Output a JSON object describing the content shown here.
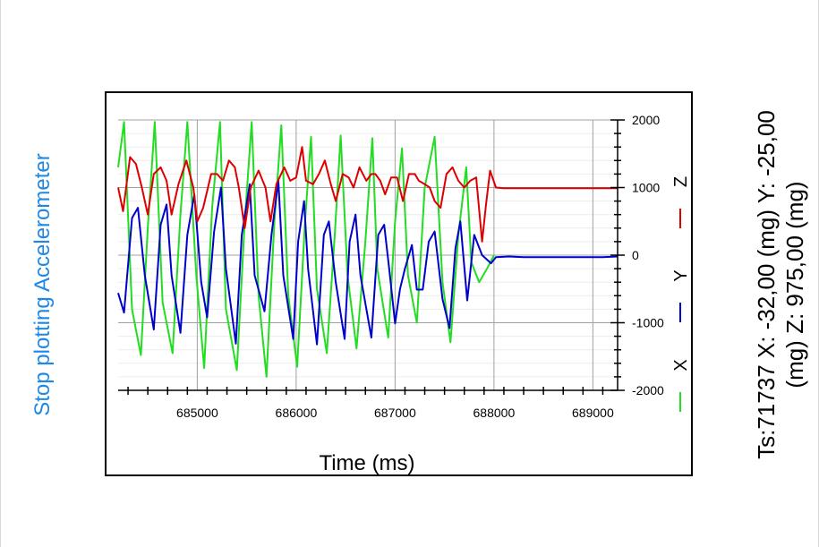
{
  "controls": {
    "stop_label": "Stop plotting Accelerometer"
  },
  "readout": {
    "line1": "Ts:71737 X: -32,00 (mg) Y: -25,00",
    "line2": "(mg) Z:  975,00 (mg)"
  },
  "colors": {
    "x": "#22dd22",
    "y": "#0000cc",
    "z": "#dd0000",
    "accent": "#1e88e5"
  },
  "chart_data": {
    "type": "line",
    "xlabel": "Time (ms)",
    "ylabel": "",
    "xlim": [
      684200,
      689250
    ],
    "ylim": [
      -2000,
      2000
    ],
    "x_ticks": [
      685000,
      686000,
      687000,
      688000,
      689000
    ],
    "y_ticks": [
      2000,
      1000,
      0,
      -1000,
      -2000
    ],
    "x_tick_labels": [
      "685000",
      "686000",
      "687000",
      "688000",
      "689000"
    ],
    "y_tick_labels": [
      "2000",
      "1000",
      "0",
      "-1000",
      "-2000"
    ],
    "grid": true,
    "legend_position": "right",
    "series": [
      {
        "name": "X",
        "color": "#22dd22",
        "points": [
          [
            684200,
            1300
          ],
          [
            684260,
            1970
          ],
          [
            684340,
            -800
          ],
          [
            684430,
            -1480
          ],
          [
            684500,
            400
          ],
          [
            684570,
            1970
          ],
          [
            684650,
            -700
          ],
          [
            684750,
            -1450
          ],
          [
            684830,
            600
          ],
          [
            684900,
            1970
          ],
          [
            684990,
            -300
          ],
          [
            685070,
            -1670
          ],
          [
            685150,
            700
          ],
          [
            685230,
            1970
          ],
          [
            685290,
            -800
          ],
          [
            685400,
            -1700
          ],
          [
            685480,
            500
          ],
          [
            685550,
            1970
          ],
          [
            685620,
            -600
          ],
          [
            685700,
            -1800
          ],
          [
            685780,
            500
          ],
          [
            685850,
            1920
          ],
          [
            685920,
            -600
          ],
          [
            686010,
            -1650
          ],
          [
            686090,
            500
          ],
          [
            686150,
            1750
          ],
          [
            686210,
            -500
          ],
          [
            686310,
            -1450
          ],
          [
            686390,
            300
          ],
          [
            686450,
            1770
          ],
          [
            686520,
            -300
          ],
          [
            686610,
            -1380
          ],
          [
            686700,
            200
          ],
          [
            686770,
            1730
          ],
          [
            686820,
            -200
          ],
          [
            686930,
            -1220
          ],
          [
            687000,
            500
          ],
          [
            687070,
            1580
          ],
          [
            687130,
            -300
          ],
          [
            687220,
            -1000
          ],
          [
            687300,
            1000
          ],
          [
            687400,
            1750
          ],
          [
            687480,
            -400
          ],
          [
            687560,
            -1290
          ],
          [
            687640,
            300
          ],
          [
            687720,
            1300
          ],
          [
            687770,
            -100
          ],
          [
            687850,
            -400
          ],
          [
            687930,
            -200
          ],
          [
            688000,
            0
          ]
        ]
      },
      {
        "name": "Y",
        "color": "#0000cc",
        "points": [
          [
            684200,
            -560
          ],
          [
            684260,
            -850
          ],
          [
            684340,
            550
          ],
          [
            684400,
            700
          ],
          [
            684470,
            -300
          ],
          [
            684560,
            -1100
          ],
          [
            684630,
            450
          ],
          [
            684690,
            750
          ],
          [
            684740,
            -300
          ],
          [
            684830,
            -1150
          ],
          [
            684900,
            300
          ],
          [
            684970,
            900
          ],
          [
            685040,
            -400
          ],
          [
            685100,
            -920
          ],
          [
            685170,
            350
          ],
          [
            685240,
            1000
          ],
          [
            685290,
            -200
          ],
          [
            685390,
            -1310
          ],
          [
            685450,
            300
          ],
          [
            685530,
            1050
          ],
          [
            685580,
            -300
          ],
          [
            685680,
            -830
          ],
          [
            685750,
            300
          ],
          [
            685820,
            1100
          ],
          [
            685870,
            -300
          ],
          [
            685970,
            -1240
          ],
          [
            686020,
            200
          ],
          [
            686080,
            800
          ],
          [
            686120,
            -200
          ],
          [
            686210,
            -1320
          ],
          [
            686280,
            300
          ],
          [
            686330,
            500
          ],
          [
            686400,
            -400
          ],
          [
            686490,
            -1240
          ],
          [
            686540,
            200
          ],
          [
            686600,
            600
          ],
          [
            686650,
            -300
          ],
          [
            686760,
            -1220
          ],
          [
            686830,
            300
          ],
          [
            686890,
            450
          ],
          [
            686940,
            -200
          ],
          [
            687000,
            -1010
          ],
          [
            687050,
            -500
          ],
          [
            687100,
            -200
          ],
          [
            687170,
            150
          ],
          [
            687220,
            -510
          ],
          [
            687280,
            -510
          ],
          [
            687340,
            200
          ],
          [
            687400,
            350
          ],
          [
            687480,
            -650
          ],
          [
            687550,
            -1080
          ],
          [
            687610,
            100
          ],
          [
            687660,
            500
          ],
          [
            687730,
            -670
          ],
          [
            687800,
            300
          ],
          [
            687880,
            0
          ],
          [
            687970,
            -120
          ],
          [
            688020,
            -30
          ],
          [
            688150,
            -20
          ],
          [
            688300,
            -30
          ],
          [
            688500,
            -30
          ],
          [
            688700,
            -30
          ],
          [
            688900,
            -30
          ],
          [
            689100,
            -30
          ],
          [
            689250,
            -20
          ]
        ]
      },
      {
        "name": "Z",
        "color": "#dd0000",
        "points": [
          [
            684200,
            1000
          ],
          [
            684250,
            650
          ],
          [
            684320,
            1450
          ],
          [
            684380,
            1350
          ],
          [
            684440,
            1000
          ],
          [
            684500,
            600
          ],
          [
            684560,
            1200
          ],
          [
            684630,
            1300
          ],
          [
            684690,
            1100
          ],
          [
            684740,
            600
          ],
          [
            684810,
            1050
          ],
          [
            684890,
            1400
          ],
          [
            684960,
            1000
          ],
          [
            685000,
            500
          ],
          [
            685060,
            700
          ],
          [
            685140,
            1200
          ],
          [
            685200,
            1200
          ],
          [
            685260,
            1100
          ],
          [
            685320,
            1400
          ],
          [
            685380,
            1300
          ],
          [
            685420,
            1000
          ],
          [
            685480,
            400
          ],
          [
            685540,
            1000
          ],
          [
            685620,
            1250
          ],
          [
            685690,
            1000
          ],
          [
            685740,
            500
          ],
          [
            685800,
            1050
          ],
          [
            685880,
            1300
          ],
          [
            685940,
            1100
          ],
          [
            686000,
            1150
          ],
          [
            686060,
            1600
          ],
          [
            686100,
            1100
          ],
          [
            686170,
            1050
          ],
          [
            686230,
            1200
          ],
          [
            686290,
            1400
          ],
          [
            686350,
            1050
          ],
          [
            686400,
            800
          ],
          [
            686470,
            1200
          ],
          [
            686530,
            1150
          ],
          [
            686580,
            1000
          ],
          [
            686640,
            1300
          ],
          [
            686710,
            1100
          ],
          [
            686760,
            1200
          ],
          [
            686800,
            1200
          ],
          [
            686850,
            1100
          ],
          [
            686900,
            900
          ],
          [
            686960,
            1150
          ],
          [
            687020,
            1150
          ],
          [
            687080,
            800
          ],
          [
            687140,
            1200
          ],
          [
            687200,
            1200
          ],
          [
            687240,
            1100
          ],
          [
            687300,
            1050
          ],
          [
            687350,
            1000
          ],
          [
            687400,
            800
          ],
          [
            687460,
            700
          ],
          [
            687520,
            1200
          ],
          [
            687580,
            1300
          ],
          [
            687640,
            1100
          ],
          [
            687700,
            1000
          ],
          [
            687760,
            1100
          ],
          [
            687820,
            1150
          ],
          [
            687880,
            200
          ],
          [
            687920,
            750
          ],
          [
            687960,
            1250
          ],
          [
            688020,
            1000
          ],
          [
            688100,
            990
          ],
          [
            688300,
            990
          ],
          [
            688500,
            990
          ],
          [
            688700,
            990
          ],
          [
            688900,
            990
          ],
          [
            689100,
            990
          ],
          [
            689250,
            990
          ]
        ]
      }
    ]
  }
}
